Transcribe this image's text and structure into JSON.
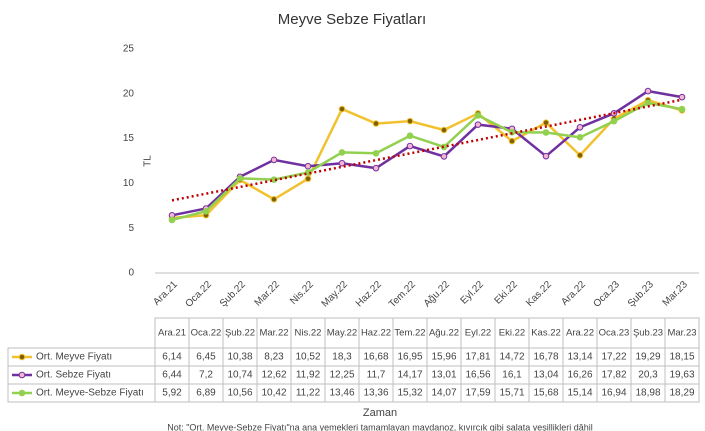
{
  "chart_data": {
    "type": "line",
    "title": "Meyve Sebze Fiyatları",
    "y_label": "TL",
    "x_label": "Zaman",
    "note": "Not: \"Ort. Meyve-Sebze Fiyatı\"na ana yemekleri tamamlayan maydanoz, kıvırcık gibi salata yeşillikleri dâhil",
    "categories": [
      "Ara.21",
      "Oca.22",
      "Şub.22",
      "Mar.22",
      "Nis.22",
      "May.22",
      "Haz.22",
      "Tem.22",
      "Ağu.22",
      "Eyl.22",
      "Eki.22",
      "Kas.22",
      "Ara.22",
      "Oca.23",
      "Şub.23",
      "Mar.23"
    ],
    "series": [
      {
        "name": "Ort. Meyve Fiyatı",
        "color": "#f2c12e",
        "marker_fill": "#7f6000",
        "values": [
          6.14,
          6.45,
          10.38,
          8.23,
          10.52,
          18.3,
          16.68,
          16.95,
          15.96,
          17.81,
          14.72,
          16.78,
          13.14,
          17.22,
          19.29,
          18.15
        ],
        "value_labels": [
          "6,14",
          "6,45",
          "10,38",
          "8,23",
          "10,52",
          "18,3",
          "16,68",
          "16,95",
          "15,96",
          "17,81",
          "14,72",
          "16,78",
          "13,14",
          "17,22",
          "19,29",
          "18,15"
        ]
      },
      {
        "name": "Ort. Sebze Fiyatı",
        "color": "#7030a0",
        "marker_fill": "#f4b6d2",
        "values": [
          6.44,
          7.2,
          10.74,
          12.62,
          11.92,
          12.25,
          11.7,
          14.17,
          13.01,
          16.56,
          16.1,
          13.04,
          16.26,
          17.82,
          20.3,
          19.63
        ],
        "value_labels": [
          "6,44",
          "7,2",
          "10,74",
          "12,62",
          "11,92",
          "12,25",
          "11,7",
          "14,17",
          "13,01",
          "16,56",
          "16,1",
          "13,04",
          "16,26",
          "17,82",
          "20,3",
          "19,63"
        ]
      },
      {
        "name": "Ort. Meyve-Sebze Fiyatı",
        "color": "#92d050",
        "marker_fill": "#92d050",
        "values": [
          5.92,
          6.89,
          10.56,
          10.42,
          11.22,
          13.46,
          13.36,
          15.32,
          14.07,
          17.59,
          15.71,
          15.68,
          15.14,
          16.94,
          18.98,
          18.29
        ],
        "value_labels": [
          "5,92",
          "6,89",
          "10,56",
          "10,42",
          "11,22",
          "13,46",
          "13,36",
          "15,32",
          "14,07",
          "17,59",
          "15,71",
          "15,68",
          "15,14",
          "16,94",
          "18,98",
          "18,29"
        ]
      }
    ],
    "trendline": {
      "series": 2,
      "color": "#c00000"
    },
    "ylim": [
      0,
      25
    ],
    "yticks": [
      0,
      5,
      10,
      15,
      20,
      25
    ],
    "grid": false
  }
}
